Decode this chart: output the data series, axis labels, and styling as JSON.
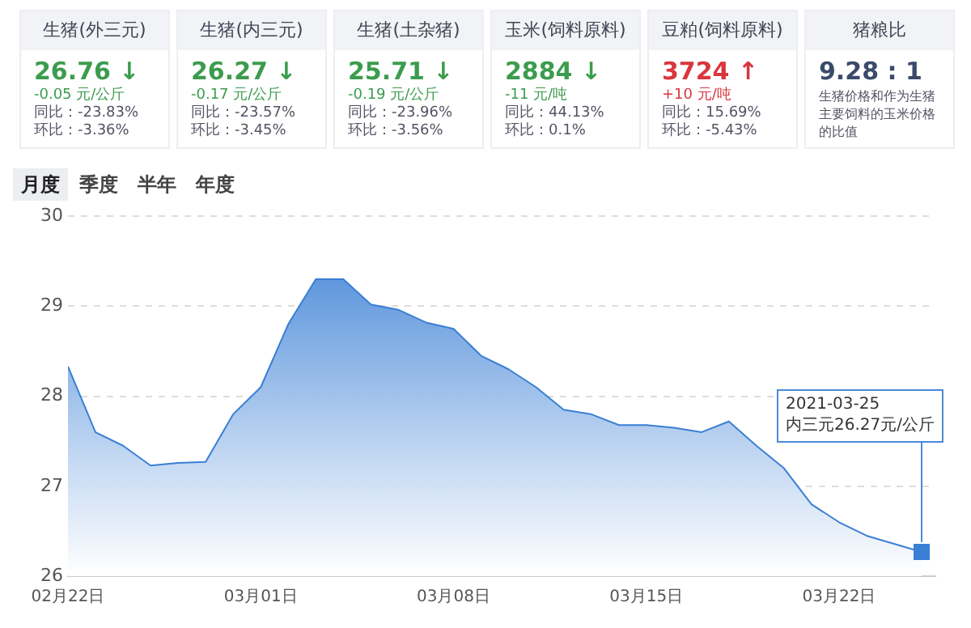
{
  "chart_data": [
    {
      "type": "other",
      "title": "生猪(外三元)",
      "annotations": [
        "26.76 ↓",
        "-0.05 元/公斤",
        "同比：-23.83%",
        "环比：-3.36%"
      ]
    },
    {
      "type": "other",
      "title": "生猪(内三元)",
      "annotations": [
        "26.27 ↓",
        "-0.17 元/公斤",
        "同比：-23.57%",
        "环比：-3.45%"
      ]
    },
    {
      "type": "other",
      "title": "生猪(土杂猪)",
      "annotations": [
        "25.71 ↓",
        "-0.19 元/公斤",
        "同比：-23.96%",
        "环比：-3.56%"
      ]
    },
    {
      "type": "other",
      "title": "玉米(饲料原料)",
      "annotations": [
        "2884 ↓",
        "-11 元/吨",
        "同比：44.13%",
        "环比：0.1%"
      ]
    },
    {
      "type": "other",
      "title": "豆粕(饲料原料)",
      "annotations": [
        "3724 ↑",
        "+10 元/吨",
        "同比：15.69%",
        "环比：-5.43%"
      ]
    },
    {
      "type": "other",
      "title": "猪粮比",
      "annotations": [
        "9.28 : 1",
        "生猪价格和作为生猪主要饲料的玉米价格的比值"
      ]
    },
    {
      "type": "area",
      "x": [
        "2021-02-22",
        "2021-02-23",
        "2021-02-24",
        "2021-02-25",
        "2021-02-26",
        "2021-02-27",
        "2021-02-28",
        "2021-03-01",
        "2021-03-02",
        "2021-03-03",
        "2021-03-04",
        "2021-03-05",
        "2021-03-06",
        "2021-03-07",
        "2021-03-08",
        "2021-03-09",
        "2021-03-10",
        "2021-03-11",
        "2021-03-12",
        "2021-03-13",
        "2021-03-14",
        "2021-03-15",
        "2021-03-16",
        "2021-03-17",
        "2021-03-18",
        "2021-03-19",
        "2021-03-20",
        "2021-03-21",
        "2021-03-22",
        "2021-03-23",
        "2021-03-24",
        "2021-03-25"
      ],
      "series": [
        {
          "color": "#3a7fd5",
          "values": [
            28.33,
            27.6,
            27.45,
            27.23,
            27.26,
            27.27,
            27.8,
            28.1,
            28.8,
            29.3,
            29.3,
            29.02,
            28.96,
            28.82,
            28.75,
            28.45,
            28.3,
            28.1,
            27.85,
            27.8,
            27.68,
            27.68,
            27.65,
            27.6,
            27.72,
            27.45,
            27.2,
            26.8,
            26.6,
            26.45,
            26.36,
            26.27
          ]
        }
      ],
      "xlim": [
        "2021-02-22",
        "2021-03-25T12:00"
      ],
      "xticks": [
        {
          "value": "2021-02-22",
          "label": "02月22日"
        },
        {
          "value": "2021-03-01",
          "label": "03月01日"
        },
        {
          "value": "2021-03-08",
          "label": "03月08日"
        },
        {
          "value": "2021-03-15",
          "label": "03月15日"
        },
        {
          "value": "2021-03-22",
          "label": "03月22日"
        }
      ],
      "ylim": [
        26,
        30
      ],
      "yticks": [
        26,
        27,
        28,
        29,
        30
      ],
      "grid": "y",
      "annotations": [
        "月度",
        "季度",
        "半年",
        "年度",
        {
          "text": "2021-03-25\n内三元26.27元/公斤",
          "x": "2021-03-25",
          "y": 26.27
        }
      ]
    }
  ]
}
